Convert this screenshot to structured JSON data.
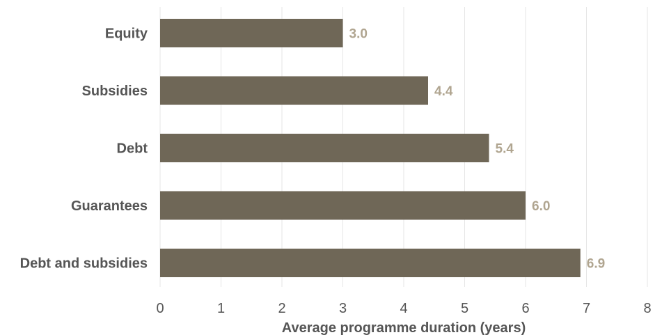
{
  "chart_data": {
    "type": "bar",
    "orientation": "horizontal",
    "categories": [
      "Equity",
      "Subsidies",
      "Debt",
      "Guarantees",
      "Debt and subsidies"
    ],
    "values": [
      3.0,
      4.4,
      5.4,
      6.0,
      6.9
    ],
    "value_labels": [
      "3.0",
      "4.4",
      "5.4",
      "6.0",
      "6.9"
    ],
    "xlabel": "Average programme duration (years)",
    "ylabel": "",
    "xlim": [
      0,
      8
    ],
    "x_ticks": [
      "0",
      "1",
      "2",
      "3",
      "4",
      "5",
      "6",
      "7",
      "8"
    ],
    "grid": "vertical",
    "bar_color": "#6f6757",
    "value_label_color": "#b0a590"
  }
}
